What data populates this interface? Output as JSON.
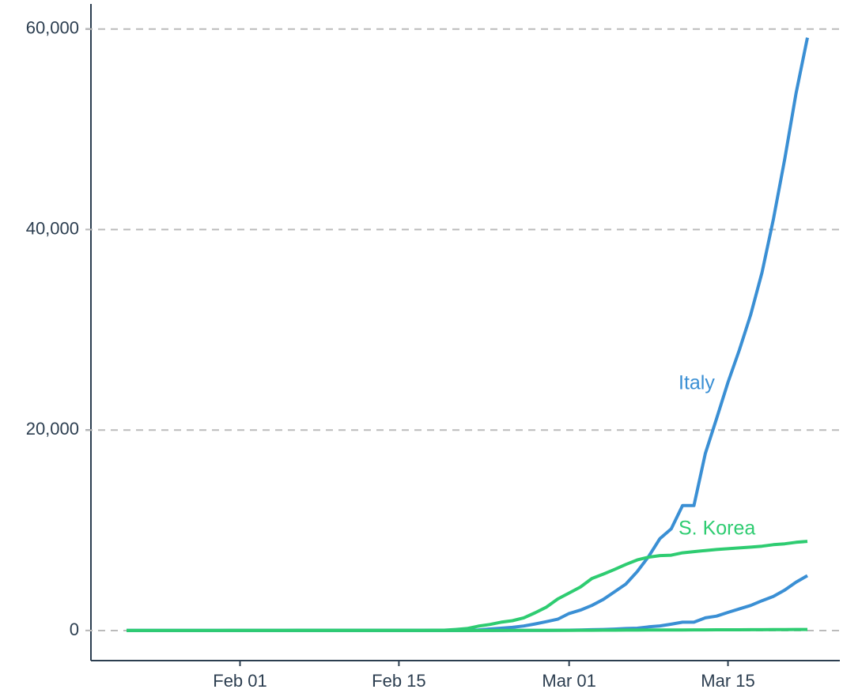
{
  "chart_data": {
    "type": "line",
    "x": [
      "Jan 22",
      "Jan 23",
      "Jan 24",
      "Jan 25",
      "Jan 26",
      "Jan 27",
      "Jan 28",
      "Jan 29",
      "Jan 30",
      "Jan 31",
      "Feb 01",
      "Feb 02",
      "Feb 03",
      "Feb 04",
      "Feb 05",
      "Feb 06",
      "Feb 07",
      "Feb 08",
      "Feb 09",
      "Feb 10",
      "Feb 11",
      "Feb 12",
      "Feb 13",
      "Feb 14",
      "Feb 15",
      "Feb 16",
      "Feb 17",
      "Feb 18",
      "Feb 19",
      "Feb 20",
      "Feb 21",
      "Feb 22",
      "Feb 23",
      "Feb 24",
      "Feb 25",
      "Feb 26",
      "Feb 27",
      "Feb 28",
      "Feb 29",
      "Mar 01",
      "Mar 02",
      "Mar 03",
      "Mar 04",
      "Mar 05",
      "Mar 06",
      "Mar 07",
      "Mar 08",
      "Mar 09",
      "Mar 10",
      "Mar 11",
      "Mar 12",
      "Mar 13",
      "Mar 14",
      "Mar 15",
      "Mar 16",
      "Mar 17",
      "Mar 18",
      "Mar 19",
      "Mar 20",
      "Mar 21",
      "Mar 22"
    ],
    "series": [
      {
        "name": "Italy",
        "color": "#3a8fd4",
        "values": [
          0,
          0,
          0,
          0,
          0,
          0,
          0,
          0,
          0,
          2,
          2,
          2,
          2,
          2,
          2,
          2,
          3,
          3,
          3,
          3,
          3,
          3,
          3,
          3,
          3,
          3,
          3,
          3,
          3,
          3,
          20,
          62,
          155,
          229,
          322,
          453,
          655,
          888,
          1128,
          1694,
          2036,
          2502,
          3089,
          3858,
          4636,
          5883,
          7375,
          9172,
          10149,
          12462,
          12462,
          17660,
          21157,
          24747,
          27980,
          31506,
          35713,
          41035,
          47021,
          53578,
          59138
        ]
      },
      {
        "name": "S. Korea",
        "color": "#2ecc71",
        "values": [
          1,
          1,
          2,
          2,
          3,
          4,
          4,
          4,
          4,
          11,
          12,
          15,
          15,
          16,
          19,
          23,
          24,
          24,
          25,
          27,
          28,
          28,
          28,
          28,
          28,
          29,
          30,
          31,
          31,
          104,
          204,
          433,
          602,
          833,
          977,
          1261,
          1766,
          2337,
          3150,
          3736,
          4335,
          5186,
          5621,
          6088,
          6593,
          7041,
          7314,
          7478,
          7513,
          7755,
          7869,
          7979,
          8086,
          8162,
          8236,
          8320,
          8413,
          8565,
          8652,
          8799,
          8897
        ]
      },
      {
        "color": "#3a8fd4",
        "values": [
          0,
          0,
          0,
          0,
          0,
          0,
          0,
          0,
          0,
          0,
          0,
          0,
          0,
          0,
          0,
          0,
          0,
          0,
          0,
          0,
          0,
          0,
          0,
          0,
          0,
          0,
          0,
          0,
          0,
          0,
          1,
          2,
          3,
          7,
          10,
          12,
          17,
          21,
          29,
          34,
          52,
          79,
          107,
          148,
          197,
          233,
          366,
          463,
          631,
          827,
          827,
          1266,
          1441,
          1809,
          2158,
          2503,
          2978,
          3405,
          4032,
          4825,
          5476
        ]
      },
      {
        "color": "#2ecc71",
        "values": [
          0,
          0,
          0,
          0,
          0,
          0,
          0,
          0,
          0,
          0,
          0,
          0,
          0,
          0,
          0,
          0,
          0,
          0,
          0,
          0,
          0,
          0,
          0,
          0,
          0,
          0,
          0,
          0,
          0,
          1,
          2,
          2,
          6,
          8,
          10,
          12,
          13,
          13,
          16,
          17,
          28,
          28,
          35,
          35,
          42,
          44,
          50,
          53,
          54,
          60,
          66,
          66,
          72,
          75,
          75,
          81,
          84,
          91,
          94,
          102,
          104
        ]
      }
    ],
    "ylim": [
      -3000,
      62500
    ],
    "yticks": [
      0,
      {
        "value": 20000,
        "label": "20,000"
      },
      {
        "value": 40000,
        "label": "40,000"
      },
      {
        "value": 60000,
        "label": "60,000"
      }
    ],
    "xticks": [
      "Feb 01",
      "Feb 15",
      "Mar 01",
      "Mar 15"
    ],
    "grid": true
  }
}
